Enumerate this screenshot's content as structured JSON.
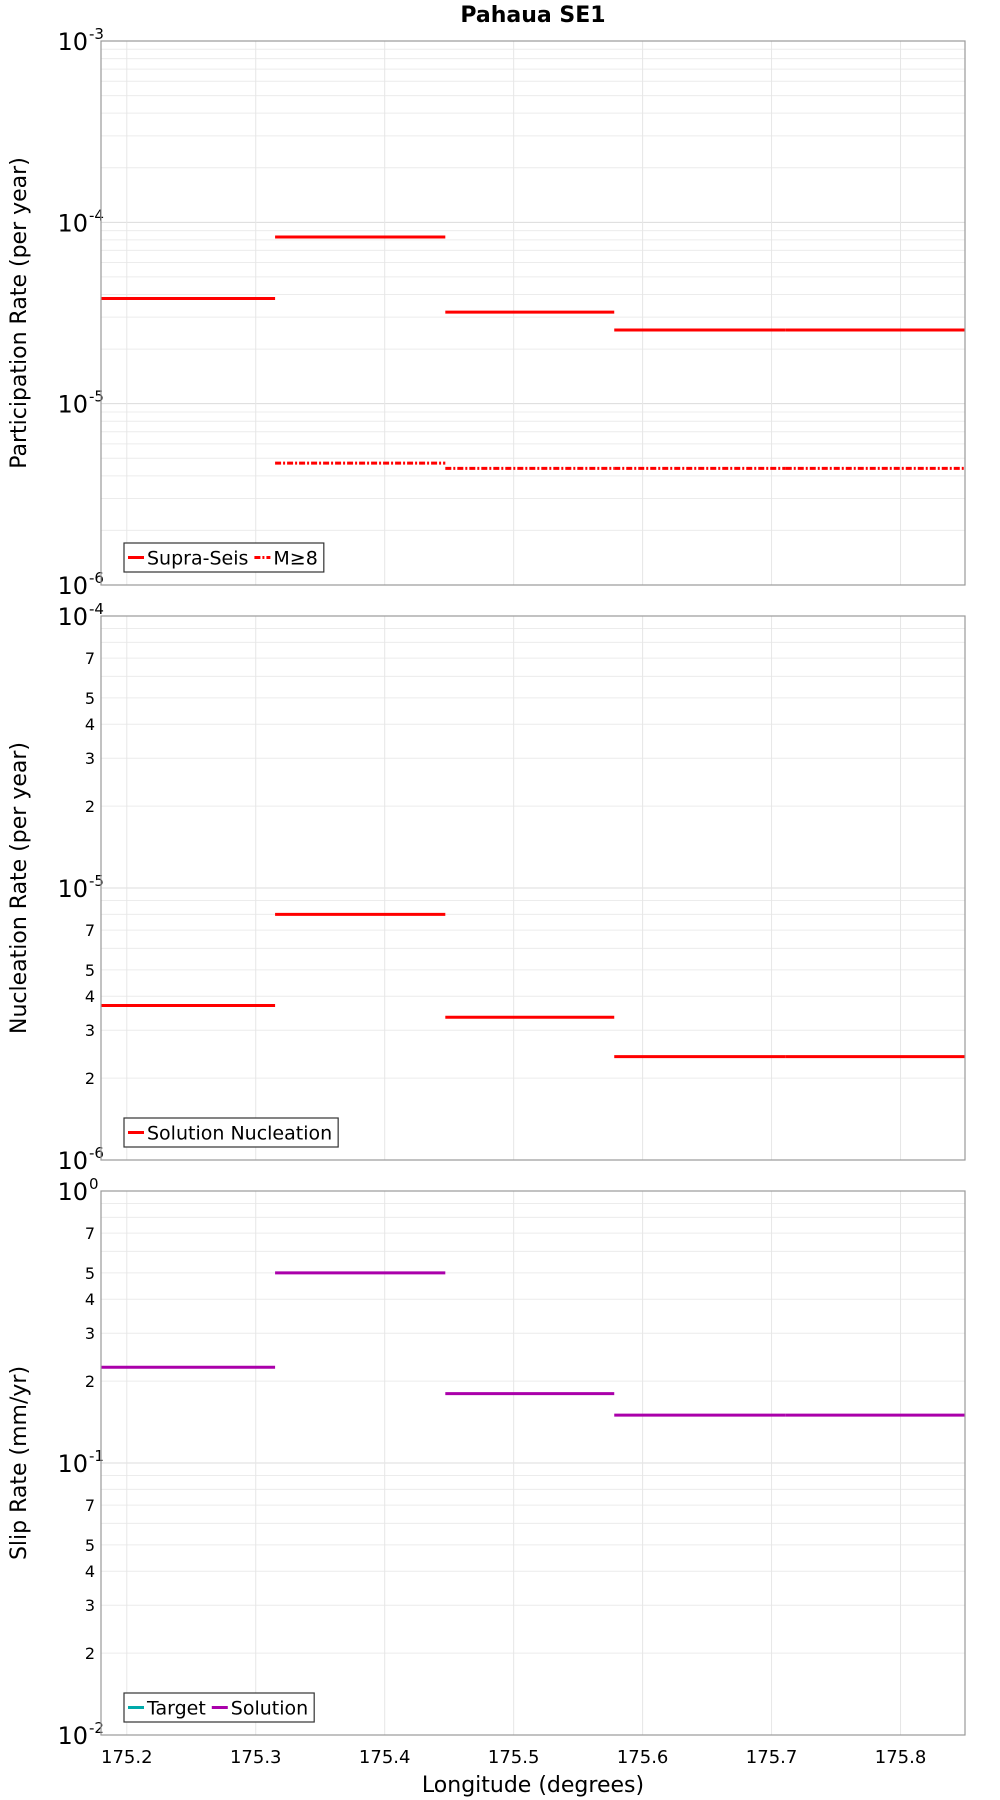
{
  "title": "Pahaua SE1",
  "xlabel": "Longitude (degrees)",
  "xticks": [
    "175.2",
    "175.3",
    "175.4",
    "175.5",
    "175.6",
    "175.7",
    "175.8"
  ],
  "chart_data": [
    {
      "type": "line",
      "title": "Pahaua SE1",
      "ylabel": "Participation Rate (per year)",
      "yscale": "log",
      "xlim": [
        175.18,
        175.85
      ],
      "ylim": [
        1e-06,
        0.001
      ],
      "yticks": [
        1e-06,
        1e-05,
        0.0001,
        0.001
      ],
      "grid": true,
      "legend_position": "bottom-left",
      "series": [
        {
          "name": "Supra-Seis",
          "color": "#ff0000",
          "style": "solid",
          "segments": [
            {
              "x0": 175.18,
              "x1": 175.315,
              "y": 3.8e-05
            },
            {
              "x0": 175.315,
              "x1": 175.447,
              "y": 8.3e-05
            },
            {
              "x0": 175.447,
              "x1": 175.578,
              "y": 3.2e-05
            },
            {
              "x0": 175.578,
              "x1": 175.711,
              "y": 2.55e-05
            },
            {
              "x0": 175.711,
              "x1": 175.85,
              "y": 2.55e-05
            }
          ]
        },
        {
          "name": "M≥8",
          "color": "#ff0000",
          "style": "dashdot",
          "segments": [
            {
              "x0": 175.315,
              "x1": 175.447,
              "y": 4.7e-06
            },
            {
              "x0": 175.447,
              "x1": 175.578,
              "y": 4.4e-06
            },
            {
              "x0": 175.578,
              "x1": 175.711,
              "y": 4.4e-06
            },
            {
              "x0": 175.711,
              "x1": 175.85,
              "y": 4.4e-06
            }
          ]
        }
      ]
    },
    {
      "type": "line",
      "ylabel": "Nucleation Rate (per year)",
      "yscale": "log",
      "xlim": [
        175.18,
        175.85
      ],
      "ylim": [
        1e-06,
        0.0001
      ],
      "yticks": [
        1e-06,
        1e-05,
        0.0001
      ],
      "yminor_labels": [
        "2",
        "3",
        "4",
        "5",
        "7"
      ],
      "grid": true,
      "legend_position": "bottom-left",
      "series": [
        {
          "name": "Solution Nucleation",
          "color": "#ff0000",
          "style": "solid",
          "segments": [
            {
              "x0": 175.18,
              "x1": 175.315,
              "y": 3.7e-06
            },
            {
              "x0": 175.315,
              "x1": 175.447,
              "y": 8e-06
            },
            {
              "x0": 175.447,
              "x1": 175.578,
              "y": 3.35e-06
            },
            {
              "x0": 175.578,
              "x1": 175.711,
              "y": 2.4e-06
            },
            {
              "x0": 175.711,
              "x1": 175.85,
              "y": 2.4e-06
            }
          ]
        }
      ]
    },
    {
      "type": "line",
      "ylabel": "Slip Rate (mm/yr)",
      "yscale": "log",
      "xlim": [
        175.18,
        175.85
      ],
      "ylim": [
        0.01,
        1
      ],
      "yticks": [
        0.01,
        0.1,
        1
      ],
      "yminor_labels": [
        "2",
        "3",
        "4",
        "5",
        "7"
      ],
      "grid": true,
      "legend_position": "bottom-left",
      "series": [
        {
          "name": "Target",
          "color": "#00aaaa",
          "style": "solid",
          "segments": []
        },
        {
          "name": "Solution",
          "color": "#aa00aa",
          "style": "solid",
          "segments": [
            {
              "x0": 175.18,
              "x1": 175.315,
              "y": 0.225
            },
            {
              "x0": 175.315,
              "x1": 175.447,
              "y": 0.5
            },
            {
              "x0": 175.447,
              "x1": 175.578,
              "y": 0.18
            },
            {
              "x0": 175.578,
              "x1": 175.711,
              "y": 0.15
            },
            {
              "x0": 175.711,
              "x1": 175.85,
              "y": 0.15
            }
          ]
        }
      ]
    }
  ]
}
